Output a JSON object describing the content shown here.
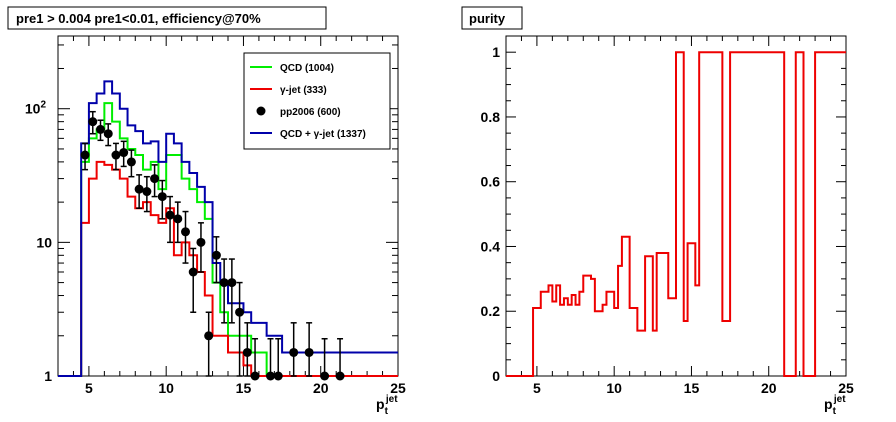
{
  "chart_data": [
    {
      "type": "histogram",
      "title": "pre1 > 0.004  pre1<0.01, efficiency@70%",
      "xlabel_main": "p",
      "xlabel_sub": "t",
      "xlabel_sup": "jet",
      "xlim": [
        3.0,
        25.0
      ],
      "ylim": [
        1,
        350
      ],
      "log_y": true,
      "x_ticks": [
        5,
        10,
        15,
        20,
        25
      ],
      "y_ticks": [
        {
          "value": 1,
          "label": "1"
        },
        {
          "value": 10,
          "label": "10"
        },
        {
          "value": 100,
          "label": "10",
          "sup": "2"
        }
      ],
      "bin_edges": [
        3.0,
        4.0,
        4.5,
        5.0,
        5.5,
        6.0,
        6.5,
        7.0,
        7.5,
        8.0,
        8.5,
        9.0,
        9.5,
        10.0,
        10.5,
        11.0,
        11.5,
        12.0,
        12.5,
        13.0,
        13.5,
        14.0,
        14.5,
        15.0,
        15.5,
        16.0,
        16.5,
        17.0,
        17.5,
        18.0,
        25.0
      ],
      "series": [
        {
          "name": "QCD (1004)",
          "color": "#00ee00",
          "style": "step",
          "values": [
            1,
            1,
            40,
            60,
            70,
            110,
            80,
            60,
            50,
            45,
            35,
            40,
            25,
            45,
            45,
            30,
            25,
            20,
            15,
            5,
            3,
            2,
            2,
            2,
            1.5,
            1.5,
            1,
            1,
            1,
            1
          ]
        },
        {
          "name": "γ-jet (333)",
          "color": "#ee0000",
          "style": "step",
          "values": [
            1,
            1,
            14,
            30,
            40,
            38,
            35,
            30,
            22,
            18,
            20,
            16,
            14,
            18,
            8,
            10,
            8,
            6,
            4,
            2,
            2,
            1.5,
            1.5,
            1.2,
            1,
            1,
            1,
            1,
            1,
            1
          ]
        },
        {
          "name": "QCD + γ-jet (1337)",
          "color": "#0000aa",
          "style": "step",
          "values": [
            1,
            1,
            55,
            110,
            130,
            160,
            130,
            100,
            75,
            68,
            55,
            57,
            40,
            65,
            55,
            40,
            33,
            26,
            20,
            7,
            5,
            3.5,
            3.5,
            3,
            2.5,
            2.5,
            2,
            2,
            1.5,
            1.5
          ]
        },
        {
          "name": "pp2006 (600)",
          "color": "#000000",
          "style": "points",
          "points": [
            {
              "x": 4.75,
              "y": 45,
              "err": 10
            },
            {
              "x": 5.25,
              "y": 80,
              "err": 15
            },
            {
              "x": 5.75,
              "y": 70,
              "err": 12
            },
            {
              "x": 6.25,
              "y": 65,
              "err": 12
            },
            {
              "x": 6.75,
              "y": 45,
              "err": 10
            },
            {
              "x": 7.25,
              "y": 47,
              "err": 10
            },
            {
              "x": 7.75,
              "y": 40,
              "err": 9
            },
            {
              "x": 8.25,
              "y": 25,
              "err": 7
            },
            {
              "x": 8.75,
              "y": 24,
              "err": 7
            },
            {
              "x": 9.25,
              "y": 30,
              "err": 8
            },
            {
              "x": 9.75,
              "y": 22,
              "err": 7
            },
            {
              "x": 10.25,
              "y": 16,
              "err": 6
            },
            {
              "x": 10.75,
              "y": 15,
              "err": 5
            },
            {
              "x": 11.25,
              "y": 12,
              "err": 5
            },
            {
              "x": 11.75,
              "y": 6,
              "err": 3
            },
            {
              "x": 12.25,
              "y": 10,
              "err": 4
            },
            {
              "x": 12.75,
              "y": 2,
              "err": 1
            },
            {
              "x": 13.25,
              "y": 8,
              "err": 3
            },
            {
              "x": 13.75,
              "y": 5,
              "err": 2.5
            },
            {
              "x": 14.25,
              "y": 5,
              "err": 2.5
            },
            {
              "x": 14.75,
              "y": 3,
              "err": 2
            },
            {
              "x": 15.25,
              "y": 1.5,
              "err": 1
            },
            {
              "x": 15.75,
              "y": 1,
              "err": 0.9
            },
            {
              "x": 16.75,
              "y": 1,
              "err": 0.9
            },
            {
              "x": 17.25,
              "y": 1,
              "err": 0.9
            },
            {
              "x": 18.25,
              "y": 1.5,
              "err": 1
            },
            {
              "x": 19.25,
              "y": 1.5,
              "err": 1
            },
            {
              "x": 20.25,
              "y": 1,
              "err": 0.9
            },
            {
              "x": 21.25,
              "y": 1,
              "err": 0.9
            }
          ]
        }
      ],
      "legend": [
        {
          "name": "QCD (1004)",
          "color": "#00ee00",
          "kind": "line"
        },
        {
          "name": "γ-jet (333)",
          "color": "#ee0000",
          "kind": "line"
        },
        {
          "name": "pp2006 (600)",
          "color": "#000000",
          "kind": "marker"
        },
        {
          "name": "QCD + γ-jet (1337)",
          "color": "#0000aa",
          "kind": "line"
        }
      ],
      "legend_placement": "top-right"
    },
    {
      "type": "histogram",
      "title": "purity",
      "xlabel_main": "p",
      "xlabel_sub": "t",
      "xlabel_sup": "jet",
      "xlim": [
        3.0,
        25.0
      ],
      "ylim": [
        0.0,
        1.05
      ],
      "log_y": false,
      "x_ticks": [
        5,
        10,
        15,
        20,
        25
      ],
      "y_ticks": [
        {
          "value": 0,
          "label": "0"
        },
        {
          "value": 0.2,
          "label": "0.2"
        },
        {
          "value": 0.4,
          "label": "0.4"
        },
        {
          "value": 0.6,
          "label": "0.6"
        },
        {
          "value": 0.8,
          "label": "0.8"
        },
        {
          "value": 1,
          "label": "1"
        }
      ],
      "bin_edges": [
        3.0,
        4.75,
        5.25,
        5.75,
        6.0,
        6.25,
        6.5,
        6.75,
        7.0,
        7.25,
        7.5,
        7.75,
        8.0,
        8.5,
        8.75,
        9.25,
        9.5,
        10.0,
        10.25,
        10.5,
        11.0,
        11.5,
        12.0,
        12.25,
        12.5,
        12.75,
        13.5,
        14.0,
        14.5,
        14.75,
        15.25,
        15.5,
        17.0,
        17.5,
        18.0,
        19.0,
        20.0,
        21.0,
        21.75,
        22.25,
        22.75,
        23.0,
        24.5,
        25.0
      ],
      "series": [
        {
          "name": "purity",
          "color": "#ee0000",
          "style": "step",
          "values": [
            0,
            0.21,
            0.26,
            0.28,
            0.23,
            0.28,
            0.22,
            0.24,
            0.22,
            0.25,
            0.22,
            0.26,
            0.31,
            0.3,
            0.2,
            0.22,
            0.26,
            0.21,
            0.34,
            0.43,
            0.21,
            0.14,
            0.37,
            0.37,
            0.14,
            0.38,
            0.24,
            1.0,
            0.17,
            0.41,
            0.28,
            1.0,
            0.17,
            1.0,
            1.0,
            1.0,
            1.0,
            0,
            1.0,
            0,
            0,
            1.0,
            1.0
          ]
        }
      ]
    }
  ]
}
